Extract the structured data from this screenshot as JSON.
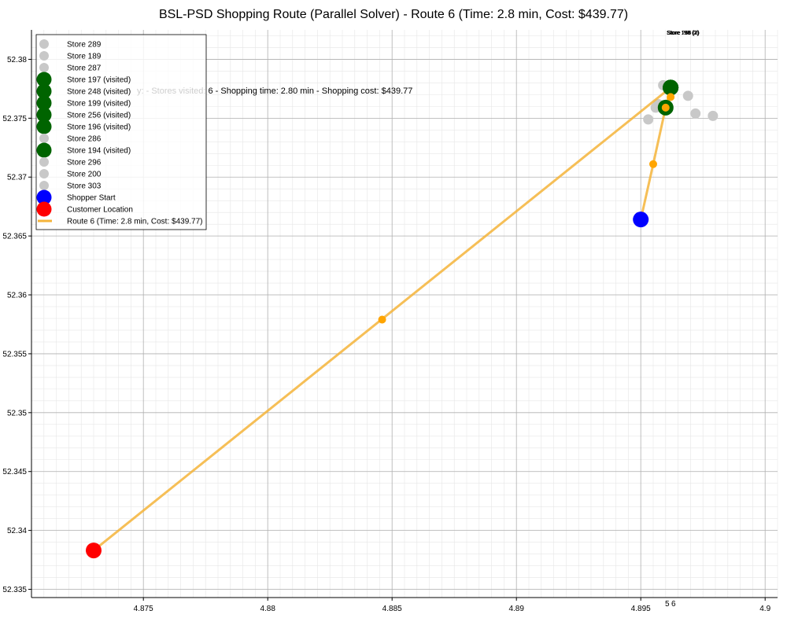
{
  "chart_data": {
    "type": "scatter",
    "title": "BSL-PSD Shopping Route (Parallel Solver) - Route 6 (Time: 2.8 min, Cost: $439.77)",
    "xlabel": "",
    "ylabel": "",
    "xlim": [
      4.8705,
      4.9005
    ],
    "ylim": [
      52.3343,
      52.3825
    ],
    "grid": true,
    "x_ticks": [
      {
        "value": 4.875,
        "label": "4.875"
      },
      {
        "value": 4.88,
        "label": "4.88"
      },
      {
        "value": 4.885,
        "label": "4.885"
      },
      {
        "value": 4.89,
        "label": "4.89"
      },
      {
        "value": 4.895,
        "label": "4.895"
      },
      {
        "value": 4.9,
        "label": "4.9"
      }
    ],
    "y_ticks": [
      {
        "value": 52.335,
        "label": "52.335"
      },
      {
        "value": 52.34,
        "label": "52.34"
      },
      {
        "value": 52.345,
        "label": "52.345"
      },
      {
        "value": 52.35,
        "label": "52.35"
      },
      {
        "value": 52.355,
        "label": "52.355"
      },
      {
        "value": 52.36,
        "label": "52.36"
      },
      {
        "value": 52.365,
        "label": "52.365"
      },
      {
        "value": 52.37,
        "label": "52.37"
      },
      {
        "value": 52.375,
        "label": "52.375"
      },
      {
        "value": 52.38,
        "label": "52.38"
      }
    ],
    "stores": [
      {
        "name": "Store 289",
        "x": 4.8959,
        "y": 52.3778,
        "visited": false
      },
      {
        "name": "Store 189",
        "x": 4.8969,
        "y": 52.3769,
        "visited": false
      },
      {
        "name": "Store 287",
        "x": 4.8972,
        "y": 52.3754,
        "visited": false
      },
      {
        "name": "Store 197 (visited)",
        "x": 4.8962,
        "y": 52.3776,
        "visited": true
      },
      {
        "name": "Store 248 (visited)",
        "x": 4.8962,
        "y": 52.3776,
        "visited": true
      },
      {
        "name": "Store 199 (visited)",
        "x": 4.8962,
        "y": 52.3776,
        "visited": true
      },
      {
        "name": "Store 256 (visited)",
        "x": 4.8962,
        "y": 52.3776,
        "visited": true
      },
      {
        "name": "Store 196 (visited)",
        "x": 4.8962,
        "y": 52.3776,
        "visited": true
      },
      {
        "name": "Store 286",
        "x": 4.8953,
        "y": 52.3749,
        "visited": false
      },
      {
        "name": "Store 194 (visited)",
        "x": 4.896,
        "y": 52.3759,
        "visited": true
      },
      {
        "name": "Store 296",
        "x": 4.8979,
        "y": 52.3752,
        "visited": false
      },
      {
        "name": "Store 200",
        "x": 4.8956,
        "y": 52.3759,
        "visited": false
      },
      {
        "name": "Store 303",
        "x": 4.8957,
        "y": 52.3762,
        "visited": false
      }
    ],
    "shopper_start": {
      "name": "Shopper Start",
      "x": 4.895,
      "y": 52.3664
    },
    "customer": {
      "name": "Customer Location",
      "x": 4.873,
      "y": 52.3383
    },
    "route": {
      "name": "Route 6 (Time: 2.8 min, Cost: $439.77)",
      "color": "#f5b43a",
      "points": [
        {
          "x": 4.895,
          "y": 52.3664
        },
        {
          "x": 4.8955,
          "y": 52.3711
        },
        {
          "x": 4.896,
          "y": 52.3759
        },
        {
          "x": 4.8962,
          "y": 52.3776
        },
        {
          "x": 4.873,
          "y": 52.3383
        }
      ],
      "waypoints": [
        {
          "x": 4.8955,
          "y": 52.3711
        },
        {
          "x": 4.896,
          "y": 52.3759
        },
        {
          "x": 4.8962,
          "y": 52.3768
        },
        {
          "x": 4.8846,
          "y": 52.3579
        }
      ]
    },
    "overlay_text": {
      "stats": "y: - Stores visited: 6 - Shopping time: 2.80 min - Shopping cost: $439.77",
      "top_labels": [
        "Store 197 (2)",
        "Store 248 (1)",
        "Store 199 (3)",
        "Store 256 (2)",
        "Store 196 (2)"
      ],
      "bottom_labels": [
        "5",
        "6"
      ]
    },
    "colors": {
      "unvisited": "#c8c8c8",
      "visited": "#006400",
      "start": "#0000ff",
      "customer": "#ff0000",
      "route": "#f5b43a",
      "waypoint": "#ffa500"
    },
    "legend_placement": "top-left"
  }
}
